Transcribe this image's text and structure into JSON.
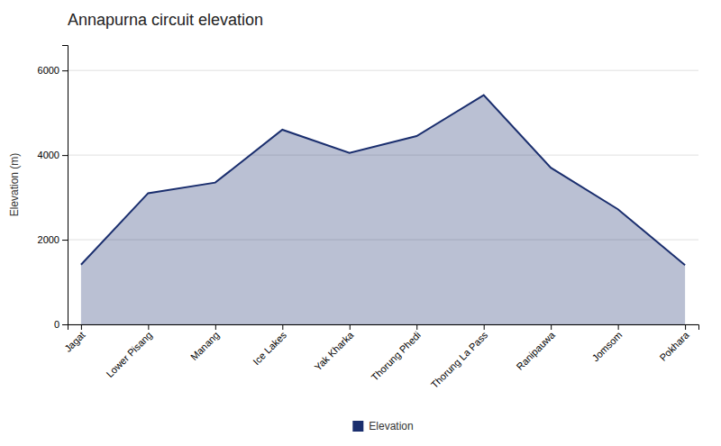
{
  "chart_data": {
    "type": "area",
    "title": "Annapurna circuit elevation",
    "y_label": "Elevation (m)",
    "categories": [
      "Jagat",
      "Lower Pisang",
      "Manang",
      "Ice Lakes",
      "Yak Kharka",
      "Thorung Phedi",
      "Thorung La Pass",
      "Ranipauwa",
      "Jomsom",
      "Pokhara"
    ],
    "series": [
      {
        "name": "Elevation",
        "color": "#1a2e6e",
        "values": [
          1410,
          3100,
          3350,
          4600,
          4050,
          4450,
          5416,
          3700,
          2720,
          1400
        ]
      }
    ],
    "ylim": [
      0,
      6600
    ],
    "yticks": [
      0,
      2000,
      4000,
      6000
    ],
    "grid": true,
    "legend": "bottom"
  }
}
